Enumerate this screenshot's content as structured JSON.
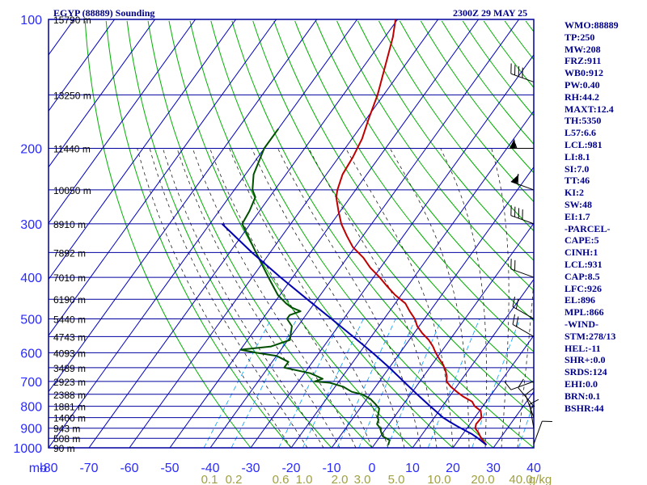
{
  "header": {
    "station_title": "EGYP (88889) Sounding",
    "valid_time": "2300Z 29 MAY 25"
  },
  "colors": {
    "frame": "#00009e",
    "isotherm": "#0000c0",
    "dry_adiabat": "#00b000",
    "moist_adiabat": "#222222",
    "mixing_ratio": "#00a0ff",
    "temperature": "#c00000",
    "dewpoint": "#005000",
    "parcel": "#0000b0",
    "axis_label_blue": "#2a2aff",
    "mixing_label": "#a0a040",
    "indices_text": "#00008b"
  },
  "chart_data": {
    "type": "skew-t log-p sounding",
    "y_axis": {
      "label": "mb",
      "scale": "log",
      "range": [
        1000,
        100
      ],
      "pressure_ticks": [
        100,
        200,
        300,
        400,
        500,
        600,
        700,
        800,
        900,
        1000
      ]
    },
    "x_axis": {
      "temperature_ticks": [
        -80,
        -70,
        -60,
        -50,
        -40,
        -30,
        -20,
        -10,
        0,
        10,
        20,
        30,
        40
      ],
      "mixing_ratio_labels": [
        "0.1",
        "0.2",
        "0.6",
        "1.0",
        "2.0",
        "3.0",
        "5.0",
        "10.0",
        "20.0",
        "40.0",
        "g/kg"
      ]
    },
    "height_labels": [
      {
        "p": 100,
        "text": "15790 m"
      },
      {
        "p": 150,
        "text": "13250 m"
      },
      {
        "p": 200,
        "text": "11440 m"
      },
      {
        "p": 250,
        "text": "10050 m"
      },
      {
        "p": 300,
        "text": "8910 m"
      },
      {
        "p": 350,
        "text": "7892 m"
      },
      {
        "p": 400,
        "text": "7010 m"
      },
      {
        "p": 450,
        "text": "6190 m"
      },
      {
        "p": 500,
        "text": "5440 m"
      },
      {
        "p": 550,
        "text": "4743 m"
      },
      {
        "p": 600,
        "text": "4093 m"
      },
      {
        "p": 650,
        "text": "3489 m"
      },
      {
        "p": 700,
        "text": "2923 m"
      },
      {
        "p": 750,
        "text": "2388 m"
      },
      {
        "p": 800,
        "text": "1881 m"
      },
      {
        "p": 850,
        "text": "1400 m"
      },
      {
        "p": 900,
        "text": "943 m"
      },
      {
        "p": 950,
        "text": "508 m"
      },
      {
        "p": 1000,
        "text": "90 m"
      }
    ],
    "series": [
      {
        "points": [
          [
            985,
            27.8
          ],
          [
            950,
            25.3
          ],
          [
            920,
            23.5
          ],
          [
            900,
            22.0
          ],
          [
            880,
            21.5
          ],
          [
            850,
            21.7
          ],
          [
            820,
            20.3
          ],
          [
            800,
            18.0
          ],
          [
            780,
            16.5
          ],
          [
            760,
            13.5
          ],
          [
            740,
            11.0
          ],
          [
            720,
            8.6
          ],
          [
            700,
            6.6
          ],
          [
            680,
            5.7
          ],
          [
            660,
            4.4
          ],
          [
            640,
            2.8
          ],
          [
            620,
            0.8
          ],
          [
            600,
            -1.2
          ],
          [
            580,
            -3.0
          ],
          [
            560,
            -5.2
          ],
          [
            540,
            -8.0
          ],
          [
            520,
            -10.5
          ],
          [
            500,
            -12.4
          ],
          [
            480,
            -15.0
          ],
          [
            460,
            -17.5
          ],
          [
            440,
            -21.5
          ],
          [
            420,
            -25.0
          ],
          [
            400,
            -28.5
          ],
          [
            380,
            -32.5
          ],
          [
            360,
            -36.0
          ],
          [
            340,
            -40.5
          ],
          [
            320,
            -44.0
          ],
          [
            300,
            -47.5
          ],
          [
            280,
            -50.5
          ],
          [
            260,
            -53.5
          ],
          [
            250,
            -54.5
          ],
          [
            230,
            -56.0
          ],
          [
            210,
            -56.5
          ],
          [
            190,
            -57.5
          ],
          [
            170,
            -59.5
          ],
          [
            150,
            -61.5
          ],
          [
            130,
            -64.5
          ],
          [
            110,
            -68.0
          ],
          [
            100,
            -70.5
          ]
        ]
      },
      {
        "points": [
          [
            985,
            3.5
          ],
          [
            960,
            3.0
          ],
          [
            940,
            0.6
          ],
          [
            920,
            -0.5
          ],
          [
            900,
            -1.5
          ],
          [
            880,
            -3.0
          ],
          [
            860,
            -3.4
          ],
          [
            850,
            -4.0
          ],
          [
            830,
            -4.6
          ],
          [
            810,
            -5.2
          ],
          [
            790,
            -7.0
          ],
          [
            770,
            -9.0
          ],
          [
            750,
            -12.0
          ],
          [
            740,
            -15.0
          ],
          [
            720,
            -18.0
          ],
          [
            705,
            -22.0
          ],
          [
            700,
            -26.0
          ],
          [
            690,
            -24.5
          ],
          [
            670,
            -28.5
          ],
          [
            650,
            -36.0
          ],
          [
            630,
            -36.0
          ],
          [
            610,
            -40.0
          ],
          [
            600,
            -45.5
          ],
          [
            590,
            -50.0
          ],
          [
            580,
            -43.0
          ],
          [
            560,
            -39.5
          ],
          [
            540,
            -40.5
          ],
          [
            520,
            -41.5
          ],
          [
            500,
            -44.0
          ],
          [
            490,
            -44.0
          ],
          [
            480,
            -42.0
          ],
          [
            470,
            -45.0
          ],
          [
            460,
            -47.0
          ],
          [
            440,
            -50.5
          ],
          [
            400,
            -56.0
          ],
          [
            350,
            -63.5
          ],
          [
            300,
            -72.0
          ],
          [
            280,
            -72.5
          ],
          [
            260,
            -73.5
          ],
          [
            250,
            -75.5
          ],
          [
            230,
            -78.0
          ],
          [
            200,
            -80.0
          ],
          [
            180,
            -80.0
          ]
        ]
      },
      {
        "points": [
          [
            985,
            27.8
          ],
          [
            950,
            24.5
          ],
          [
            930,
            22.4
          ],
          [
            910,
            19.8
          ],
          [
            890,
            17.2
          ],
          [
            870,
            14.6
          ],
          [
            850,
            12.2
          ],
          [
            800,
            7.0
          ],
          [
            750,
            1.6
          ],
          [
            700,
            -4.0
          ],
          [
            650,
            -10.0
          ],
          [
            600,
            -16.8
          ],
          [
            550,
            -24.5
          ],
          [
            500,
            -33.0
          ],
          [
            450,
            -42.5
          ],
          [
            400,
            -53.0
          ],
          [
            350,
            -64.5
          ],
          [
            300,
            -77.0
          ]
        ]
      }
    ],
    "winds": [
      {
        "p": 140,
        "dir": 290,
        "speed": 40
      },
      {
        "p": 200,
        "dir": 270,
        "speed": 55
      },
      {
        "p": 250,
        "dir": 290,
        "speed": 60
      },
      {
        "p": 300,
        "dir": 290,
        "speed": 40
      },
      {
        "p": 400,
        "dir": 290,
        "speed": 20
      },
      {
        "p": 500,
        "dir": 300,
        "speed": 20
      },
      {
        "p": 550,
        "dir": 300,
        "speed": 20
      },
      {
        "p": 700,
        "dir": 250,
        "speed": 10
      },
      {
        "p": 800,
        "dir": 320,
        "speed": 10
      },
      {
        "p": 850,
        "dir": 340,
        "speed": 10
      },
      {
        "p": 900,
        "dir": 350,
        "speed": 15
      },
      {
        "p": 980,
        "dir": 20,
        "speed": 10
      }
    ]
  },
  "indices": [
    "WMO:88889",
    "TP:250",
    "MW:208",
    "FRZ:911",
    "WB0:912",
    "PW:0.40",
    "RH:44.2",
    "MAXT:12.4",
    "TH:5350",
    "L57:6.6",
    "LCL:981",
    "LI:8.1",
    "SI:7.0",
    "TT:46",
    "KI:2",
    "SW:48",
    "EI:1.7",
    "-PARCEL-",
    "CAPE:5",
    "CINH:1",
    "LCL:931",
    "CAP:8.5",
    "LFC:926",
    "EL:896",
    "MPL:866",
    "-WIND-",
    "STM:278/13",
    "HEL:-11",
    "SHR+:0.0",
    "SRDS:124",
    "EHI:0.0",
    "BRN:0.1",
    "BSHR:44"
  ]
}
